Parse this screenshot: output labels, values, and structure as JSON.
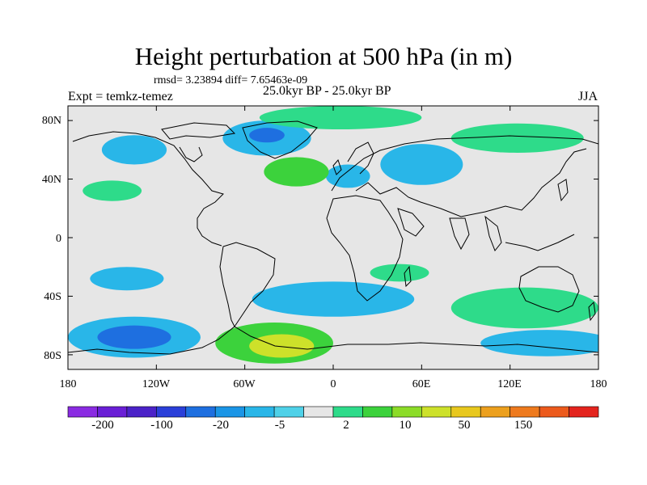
{
  "title": "Height perturbation at 500 hPa (in m)",
  "stats": "rmsd= 3.23894  diff= 7.65463e-09",
  "experiment": "Expt = temkz-temez",
  "period": "25.0kyr BP - 25.0kyr BP",
  "season": "JJA",
  "axes": {
    "y_ticks": [
      {
        "label": "80N",
        "lat": 80
      },
      {
        "label": "40N",
        "lat": 40
      },
      {
        "label": "0",
        "lat": 0
      },
      {
        "label": "40S",
        "lat": -40
      },
      {
        "label": "80S",
        "lat": -80
      }
    ],
    "x_ticks": [
      {
        "label": "180",
        "lon": -180
      },
      {
        "label": "120W",
        "lon": -120
      },
      {
        "label": "60W",
        "lon": -60
      },
      {
        "label": "0",
        "lon": 0
      },
      {
        "label": "60E",
        "lon": 60
      },
      {
        "label": "120E",
        "lon": 120
      },
      {
        "label": "180",
        "lon": 180
      }
    ],
    "lon_range": [
      -180,
      180
    ],
    "lat_range": [
      -90,
      90
    ]
  },
  "colorbar": {
    "colors": [
      "#8a2be2",
      "#6a1fd6",
      "#4b22c8",
      "#2a3fd9",
      "#1e6fe0",
      "#1a95e6",
      "#29b6e8",
      "#4fd1e8",
      "#e6e6e6",
      "#2edb8a",
      "#3cd23c",
      "#8cdc28",
      "#cde12a",
      "#e8c81e",
      "#eca01e",
      "#ee7a1e",
      "#ec5a1c",
      "#e4241e"
    ],
    "labels": [
      {
        "text": "-200",
        "boundary": 1
      },
      {
        "text": "-100",
        "boundary": 3
      },
      {
        "text": "-20",
        "boundary": 5
      },
      {
        "text": "-5",
        "boundary": 7
      },
      {
        "text": "2",
        "boundary": 9
      },
      {
        "text": "10",
        "boundary": 11
      },
      {
        "text": "50",
        "boundary": 13
      },
      {
        "text": "150",
        "boundary": 15
      }
    ]
  },
  "anomaly_regions": [
    {
      "level": -5,
      "color": "#29b6e8",
      "lon": -45,
      "lat": 68,
      "dlon": 30,
      "dlat": 12
    },
    {
      "level": -20,
      "color": "#1e6fe0",
      "lon": -45,
      "lat": 70,
      "dlon": 12,
      "dlat": 5
    },
    {
      "level": -5,
      "color": "#29b6e8",
      "lon": -135,
      "lat": 60,
      "dlon": 22,
      "dlat": 10
    },
    {
      "level": -5,
      "color": "#29b6e8",
      "lon": 60,
      "lat": 50,
      "dlon": 28,
      "dlat": 14
    },
    {
      "level": -5,
      "color": "#29b6e8",
      "lon": 10,
      "lat": 42,
      "dlon": 15,
      "dlat": 8
    },
    {
      "level": 10,
      "color": "#3cd23c",
      "lon": -25,
      "lat": 45,
      "dlon": 22,
      "dlat": 10
    },
    {
      "level": 2,
      "color": "#2edb8a",
      "lon": 5,
      "lat": 82,
      "dlon": 55,
      "dlat": 8
    },
    {
      "level": 2,
      "color": "#2edb8a",
      "lon": 125,
      "lat": 68,
      "dlon": 45,
      "dlat": 10
    },
    {
      "level": 2,
      "color": "#2edb8a",
      "lon": -150,
      "lat": 32,
      "dlon": 20,
      "dlat": 7
    },
    {
      "level": 2,
      "color": "#2edb8a",
      "lon": 45,
      "lat": -24,
      "dlon": 20,
      "dlat": 6
    },
    {
      "level": -5,
      "color": "#29b6e8",
      "lon": -140,
      "lat": -28,
      "dlon": 25,
      "dlat": 8
    },
    {
      "level": -5,
      "color": "#29b6e8",
      "lon": 0,
      "lat": -42,
      "dlon": 55,
      "dlat": 12
    },
    {
      "level": -5,
      "color": "#29b6e8",
      "lon": -135,
      "lat": -68,
      "dlon": 45,
      "dlat": 14
    },
    {
      "level": -20,
      "color": "#1e6fe0",
      "lon": -135,
      "lat": -68,
      "dlon": 25,
      "dlat": 8
    },
    {
      "level": 10,
      "color": "#3cd23c",
      "lon": -40,
      "lat": -72,
      "dlon": 40,
      "dlat": 14
    },
    {
      "level": 50,
      "color": "#cde12a",
      "lon": -35,
      "lat": -74,
      "dlon": 22,
      "dlat": 8
    },
    {
      "level": 2,
      "color": "#2edb8a",
      "lon": 130,
      "lat": -48,
      "dlon": 50,
      "dlat": 14
    },
    {
      "level": -5,
      "color": "#29b6e8",
      "lon": 145,
      "lat": -72,
      "dlon": 45,
      "dlat": 9
    }
  ]
}
